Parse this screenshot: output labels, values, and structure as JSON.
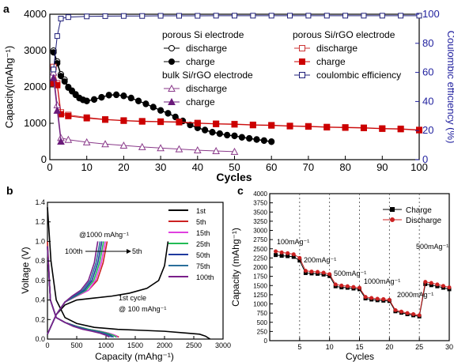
{
  "chart_data": [
    {
      "panel": "a",
      "type": "line",
      "xlabel": "Cycles",
      "ylabel": "Capacity(mAhg⁻¹)",
      "y2label": "Coulombic efficiency (%)",
      "xlim": [
        0,
        100
      ],
      "ylim": [
        0,
        4000
      ],
      "y2lim": [
        0,
        100
      ],
      "xticks": [
        0,
        10,
        20,
        30,
        40,
        50,
        60,
        70,
        80,
        90,
        100
      ],
      "yticks": [
        0,
        1000,
        2000,
        3000,
        4000
      ],
      "y2ticks": [
        0,
        20,
        40,
        60,
        80,
        100
      ],
      "legend_groups": [
        {
          "header": "porous Si electrode",
          "entries": [
            {
              "label": "discharge",
              "series": "psi_dis"
            },
            {
              "label": "charge",
              "series": "psi_chg"
            }
          ]
        },
        {
          "header": "porous Si/rGO electrode",
          "entries": [
            {
              "label": "discharge",
              "series": "psirgo_dis"
            },
            {
              "label": "charge",
              "series": "psirgo_chg"
            },
            {
              "label": "coulombic efficiency",
              "series": "ce"
            }
          ]
        },
        {
          "header": "bulk Si/rGO electrode",
          "entries": [
            {
              "label": "discharge",
              "series": "bulk_dis"
            },
            {
              "label": "charge",
              "series": "bulk_chg"
            }
          ]
        }
      ],
      "series": [
        {
          "id": "psi_dis",
          "marker": "circle-open",
          "color": "#000000",
          "axis": "left",
          "x": [
            1,
            2,
            3,
            4,
            5,
            6,
            7,
            8,
            9,
            10,
            12,
            14,
            16,
            18,
            20,
            22,
            24,
            26,
            28,
            30,
            32,
            34,
            36,
            38,
            40,
            42,
            44,
            46,
            48,
            50,
            52,
            54,
            56,
            58,
            60
          ],
          "y": [
            3000,
            2700,
            2350,
            2200,
            2000,
            1900,
            1800,
            1700,
            1650,
            1620,
            1660,
            1720,
            1780,
            1790,
            1760,
            1700,
            1620,
            1540,
            1450,
            1360,
            1280,
            1180,
            1070,
            960,
            880,
            820,
            760,
            720,
            680,
            660,
            620,
            590,
            560,
            530,
            500
          ]
        },
        {
          "id": "psi_chg",
          "marker": "circle-filled",
          "color": "#000000",
          "axis": "left",
          "x": [
            1,
            2,
            3,
            4,
            5,
            6,
            7,
            8,
            9,
            10,
            12,
            14,
            16,
            18,
            20,
            22,
            24,
            26,
            28,
            30,
            32,
            34,
            36,
            38,
            40,
            42,
            44,
            46,
            48,
            50,
            52,
            54,
            56,
            58,
            60
          ],
          "y": [
            2950,
            2650,
            2300,
            2150,
            1980,
            1880,
            1780,
            1690,
            1640,
            1610,
            1650,
            1710,
            1770,
            1780,
            1750,
            1690,
            1610,
            1530,
            1440,
            1350,
            1270,
            1170,
            1060,
            950,
            870,
            810,
            750,
            710,
            670,
            650,
            610,
            580,
            550,
            520,
            490
          ]
        },
        {
          "id": "psirgo_dis",
          "marker": "square-open",
          "color": "#cc3333",
          "axis": "left",
          "x": [
            1,
            2,
            3,
            5,
            10,
            15,
            20,
            25,
            30,
            35,
            40,
            45,
            50,
            55,
            60,
            65,
            70,
            75,
            80,
            85,
            90,
            95,
            100
          ],
          "y": [
            2550,
            2100,
            1300,
            1230,
            1160,
            1110,
            1080,
            1060,
            1050,
            1040,
            1010,
            990,
            980,
            960,
            950,
            930,
            920,
            900,
            890,
            880,
            860,
            850,
            820
          ]
        },
        {
          "id": "psirgo_chg",
          "marker": "square-filled",
          "color": "#cc0000",
          "axis": "left",
          "x": [
            1,
            2,
            3,
            5,
            10,
            15,
            20,
            25,
            30,
            35,
            40,
            45,
            50,
            55,
            60,
            65,
            70,
            75,
            80,
            85,
            90,
            95,
            100
          ],
          "y": [
            2100,
            2050,
            1250,
            1200,
            1140,
            1100,
            1070,
            1050,
            1040,
            1030,
            1000,
            980,
            970,
            950,
            940,
            920,
            910,
            890,
            880,
            870,
            850,
            840,
            810
          ]
        },
        {
          "id": "bulk_dis",
          "marker": "triangle-open",
          "color": "#8a3a8a",
          "axis": "left",
          "x": [
            1,
            2,
            3,
            5,
            10,
            15,
            20,
            25,
            30,
            35,
            40,
            45,
            50
          ],
          "y": [
            2400,
            1500,
            600,
            550,
            480,
            430,
            390,
            350,
            320,
            290,
            260,
            240,
            220
          ]
        },
        {
          "id": "bulk_chg",
          "marker": "triangle-filled",
          "color": "#6a1a7a",
          "axis": "left",
          "x": [
            1,
            2,
            3
          ],
          "y": [
            2250,
            1350,
            500
          ]
        },
        {
          "id": "ce",
          "marker": "square-open",
          "color": "#1f1f7a",
          "axis": "right",
          "x": [
            1,
            2,
            3,
            5,
            10,
            15,
            20,
            25,
            30,
            35,
            40,
            45,
            50,
            55,
            60,
            65,
            70,
            75,
            80,
            85,
            90,
            95,
            100
          ],
          "y": [
            62,
            85,
            97,
            98,
            98.5,
            98.7,
            98.8,
            98.8,
            98.9,
            98.9,
            98.9,
            99,
            99,
            99,
            99,
            99,
            99,
            99,
            99,
            99,
            99,
            99,
            99
          ]
        }
      ]
    },
    {
      "panel": "b",
      "type": "line",
      "xlabel": "Capacity (mAhg⁻¹)",
      "ylabel": "Voltage (V)",
      "xlim": [
        0,
        3000
      ],
      "ylim": [
        0,
        1.4
      ],
      "xticks": [
        0,
        500,
        1000,
        1500,
        2000,
        2500,
        3000
      ],
      "yticks": [
        0,
        0.2,
        0.4,
        0.6,
        0.8,
        1.0,
        1.2,
        1.4
      ],
      "annotations": [
        "@1000 mAhg⁻¹",
        "100th",
        "5th",
        "1st cycle",
        "@ 100 mAhg⁻¹"
      ],
      "series": [
        {
          "name": "1st",
          "color": "#000000",
          "discharge": {
            "x": [
              0,
              60,
              150,
              300,
              500,
              800,
              1200,
              1600,
              2000,
              2400,
              2600,
              2700,
              2780
            ],
            "y": [
              1.35,
              0.8,
              0.4,
              0.22,
              0.16,
              0.12,
              0.1,
              0.09,
              0.08,
              0.06,
              0.05,
              0.03,
              0.0
            ]
          },
          "charge": {
            "x": [
              0,
              150,
              300,
              500,
              800,
              1100,
              1400,
              1700,
              1900,
              2000,
              2060
            ],
            "y": [
              0.05,
              0.25,
              0.35,
              0.4,
              0.42,
              0.44,
              0.47,
              0.52,
              0.6,
              0.75,
              1.0
            ]
          }
        },
        {
          "name": "5th",
          "color": "#cc2222",
          "discharge": {
            "x": [
              0,
              50,
              150,
              300,
              500,
              700,
              900,
              1050,
              1150,
              1220
            ],
            "y": [
              1.0,
              0.4,
              0.22,
              0.17,
              0.13,
              0.1,
              0.08,
              0.06,
              0.04,
              0.02
            ]
          },
          "charge": {
            "x": [
              0,
              150,
              300,
              500,
              700,
              850,
              950,
              1020
            ],
            "y": [
              0.05,
              0.25,
              0.38,
              0.44,
              0.5,
              0.6,
              0.78,
              1.0
            ]
          }
        },
        {
          "name": "15th",
          "color": "#e040e0",
          "discharge": {
            "x": [
              0,
              50,
              150,
              300,
              500,
              700,
              900,
              1050,
              1150,
              1200
            ],
            "y": [
              0.95,
              0.4,
              0.22,
              0.17,
              0.13,
              0.1,
              0.08,
              0.06,
              0.04,
              0.02
            ]
          },
          "charge": {
            "x": [
              0,
              150,
              300,
              500,
              700,
              820,
              920,
              990
            ],
            "y": [
              0.05,
              0.25,
              0.38,
              0.44,
              0.5,
              0.6,
              0.78,
              1.0
            ]
          }
        },
        {
          "name": "25th",
          "color": "#22bb55",
          "discharge": {
            "x": [
              0,
              50,
              150,
              300,
              500,
              700,
              880,
              1020,
              1120,
              1180
            ],
            "y": [
              0.95,
              0.4,
              0.22,
              0.17,
              0.13,
              0.1,
              0.08,
              0.06,
              0.04,
              0.02
            ]
          },
          "charge": {
            "x": [
              0,
              150,
              300,
              480,
              660,
              790,
              890,
              960
            ],
            "y": [
              0.05,
              0.25,
              0.38,
              0.44,
              0.5,
              0.6,
              0.78,
              1.0
            ]
          }
        },
        {
          "name": "50th",
          "color": "#1f3a9e",
          "discharge": {
            "x": [
              0,
              50,
              150,
              300,
              480,
              660,
              830,
              970,
              1070,
              1130
            ],
            "y": [
              0.95,
              0.4,
              0.22,
              0.17,
              0.13,
              0.1,
              0.08,
              0.06,
              0.04,
              0.02
            ]
          },
          "charge": {
            "x": [
              0,
              150,
              300,
              460,
              630,
              760,
              860,
              930
            ],
            "y": [
              0.05,
              0.25,
              0.38,
              0.44,
              0.5,
              0.6,
              0.78,
              1.0
            ]
          }
        },
        {
          "name": "75th",
          "color": "#2a6f9a",
          "discharge": {
            "x": [
              0,
              50,
              150,
              300,
              460,
              640,
              800,
              940,
              1040,
              1100
            ],
            "y": [
              0.95,
              0.4,
              0.22,
              0.17,
              0.13,
              0.1,
              0.08,
              0.06,
              0.04,
              0.02
            ]
          },
          "charge": {
            "x": [
              0,
              150,
              300,
              440,
              600,
              730,
              830,
              900
            ],
            "y": [
              0.05,
              0.25,
              0.38,
              0.44,
              0.5,
              0.6,
              0.78,
              1.0
            ]
          }
        },
        {
          "name": "100th",
          "color": "#7a1f8a",
          "discharge": {
            "x": [
              0,
              50,
              150,
              300,
              440,
              600,
              760,
              900,
              1000,
              1060
            ],
            "y": [
              0.95,
              0.4,
              0.22,
              0.17,
              0.13,
              0.1,
              0.08,
              0.06,
              0.04,
              0.02
            ]
          },
          "charge": {
            "x": [
              0,
              150,
              300,
              420,
              570,
              700,
              800,
              860
            ],
            "y": [
              0.05,
              0.25,
              0.38,
              0.44,
              0.5,
              0.6,
              0.78,
              1.0
            ]
          }
        }
      ]
    },
    {
      "panel": "c",
      "type": "line",
      "xlabel": "Cycles",
      "ylabel": "Capacity (mAhg⁻¹)",
      "xlim": [
        0,
        30
      ],
      "ylim": [
        0,
        4000
      ],
      "xticks": [
        5,
        10,
        15,
        20,
        25,
        30
      ],
      "yticks": [
        0,
        250,
        500,
        750,
        1000,
        1250,
        1500,
        1750,
        2000,
        2250,
        2500,
        2750,
        3000,
        3250,
        3500,
        3750,
        4000
      ],
      "vlines": [
        5,
        10,
        15,
        20,
        25
      ],
      "annotations": [
        {
          "text": "100mAg⁻¹"
        },
        {
          "text": "200mAg⁻¹"
        },
        {
          "text": "500mAg⁻¹"
        },
        {
          "text": "1000mAg⁻¹"
        },
        {
          "text": "2000mAg⁻¹"
        },
        {
          "text": "500mAg⁻¹"
        }
      ],
      "series": [
        {
          "name": "Charge",
          "marker": "square-filled",
          "color": "#000000",
          "x": [
            1,
            2,
            3,
            4,
            5,
            6,
            7,
            8,
            9,
            10,
            11,
            12,
            13,
            14,
            15,
            16,
            17,
            18,
            19,
            20,
            21,
            22,
            23,
            24,
            25,
            26,
            27,
            28,
            29,
            30
          ],
          "y": [
            2330,
            2310,
            2300,
            2280,
            2180,
            1840,
            1830,
            1820,
            1800,
            1760,
            1480,
            1450,
            1440,
            1420,
            1400,
            1150,
            1120,
            1100,
            1090,
            1080,
            800,
            760,
            720,
            690,
            660,
            1540,
            1510,
            1480,
            1440,
            1400
          ]
        },
        {
          "name": "Discharge",
          "marker": "circle-filled",
          "color": "#cc2222",
          "x": [
            1,
            2,
            3,
            4,
            5,
            6,
            7,
            8,
            9,
            10,
            11,
            12,
            13,
            14,
            15,
            16,
            17,
            18,
            19,
            20,
            21,
            22,
            23,
            24,
            25,
            26,
            27,
            28,
            29,
            30
          ],
          "y": [
            2430,
            2400,
            2380,
            2350,
            2250,
            1900,
            1880,
            1870,
            1850,
            1810,
            1530,
            1500,
            1480,
            1460,
            1440,
            1190,
            1160,
            1140,
            1130,
            1110,
            830,
            790,
            750,
            720,
            690,
            1600,
            1570,
            1530,
            1490,
            1450
          ]
        }
      ]
    }
  ],
  "labels": {
    "a": "a",
    "b": "b",
    "c": "c"
  }
}
